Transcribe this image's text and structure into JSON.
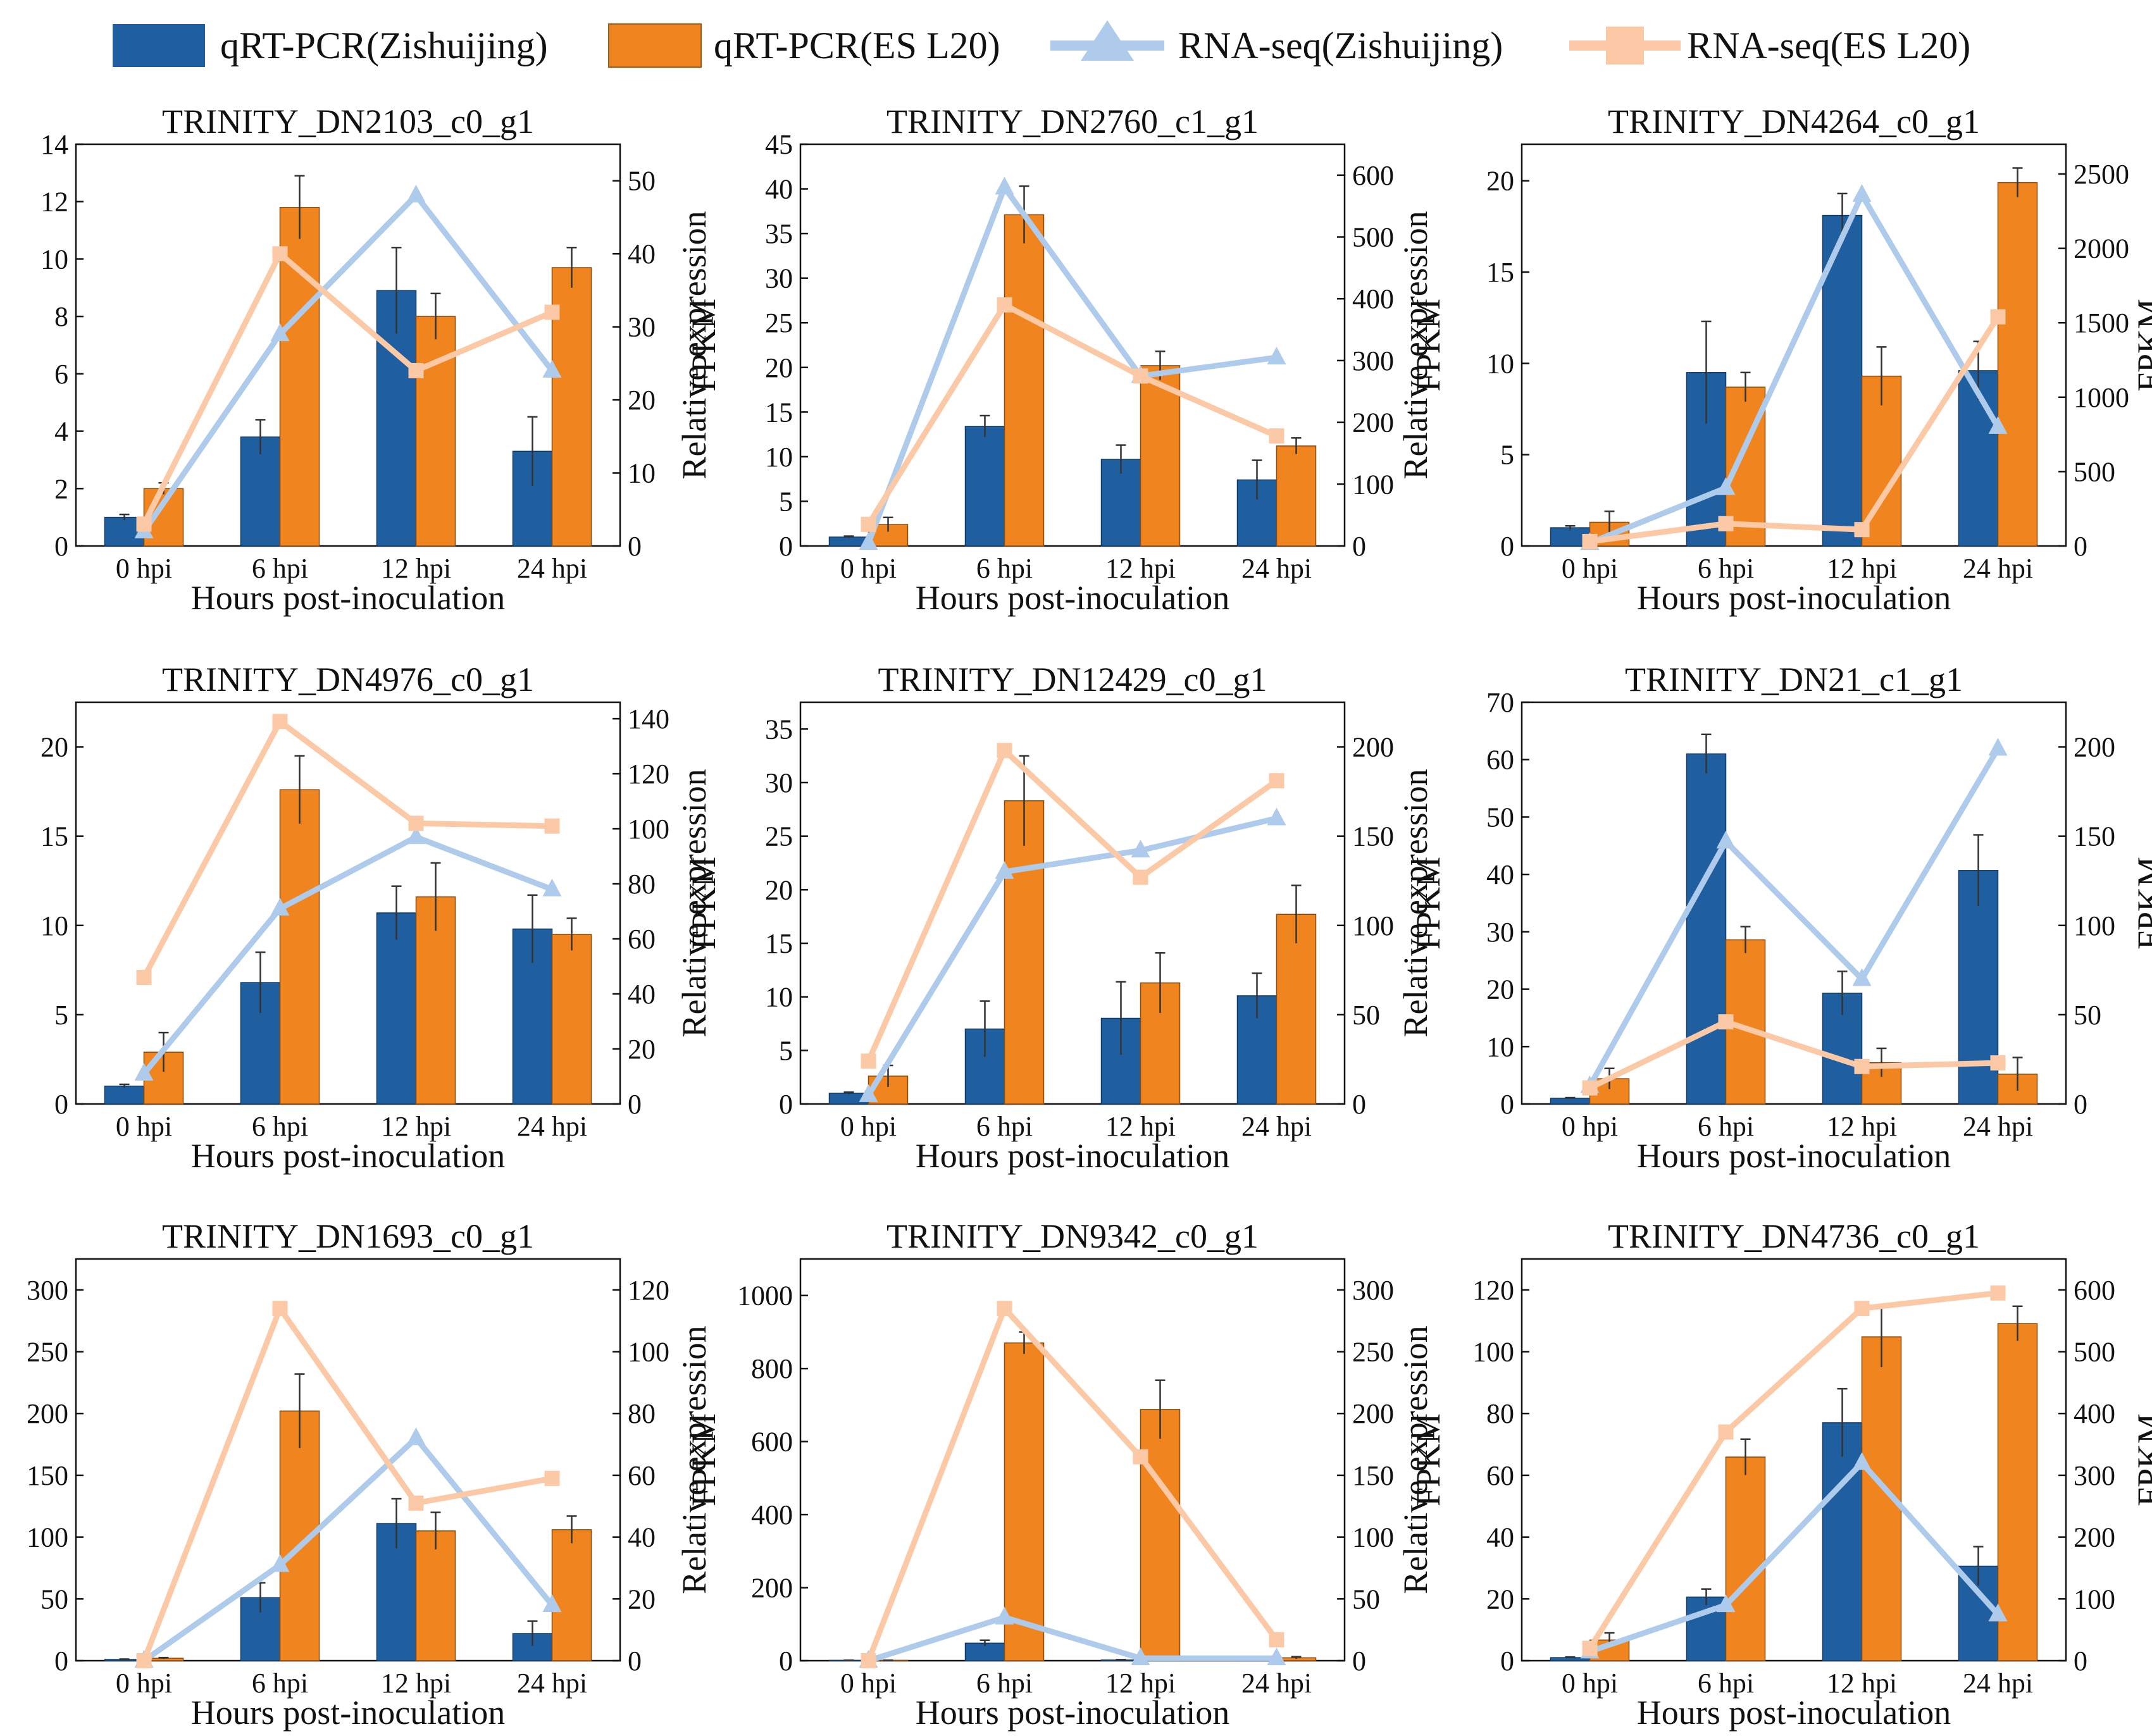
{
  "legend": {
    "items": [
      {
        "label": "qRT-PCR(Zishuijing)",
        "kind": "bar",
        "color": "#1f5fa0"
      },
      {
        "label": "qRT-PCR(ES L20)",
        "kind": "bar",
        "color": "#f0841e"
      },
      {
        "label": "RNA-seq(Zishuijing)",
        "kind": "line-triangle",
        "color": "#aecbeb"
      },
      {
        "label": "RNA-seq(ES L20)",
        "kind": "line-square",
        "color": "#fbc9a6"
      }
    ]
  },
  "colors": {
    "bar_zishuijing": "#1f5fa0",
    "bar_esl20": "#f0841e",
    "line_zishuijing": "#aecbeb",
    "line_esl20": "#fbc9a6"
  },
  "chart_data": [
    {
      "type": "bar",
      "title": "TRINITY_DN2103_c0_g1",
      "xlabel": "Hours post-inoculation",
      "ylabel": "Relative expression",
      "y2label": "FPKM",
      "categories": [
        "0 hpi",
        "6 hpi",
        "12 hpi",
        "24 hpi"
      ],
      "ylim": [
        0,
        14
      ],
      "yticks": [
        0,
        2,
        4,
        6,
        8,
        10,
        12,
        14
      ],
      "y2lim": [
        0,
        55
      ],
      "y2ticks": [
        0,
        10,
        20,
        30,
        40,
        50
      ],
      "series": [
        {
          "name": "qRT-PCR(Zishuijing)",
          "kind": "bar",
          "axis": "left",
          "values": [
            1.0,
            3.8,
            8.9,
            3.3
          ],
          "errors": [
            0.1,
            0.6,
            1.5,
            1.2
          ]
        },
        {
          "name": "qRT-PCR(ES L20)",
          "kind": "bar",
          "axis": "left",
          "values": [
            2.0,
            11.8,
            8.0,
            9.7
          ],
          "errors": [
            0.2,
            1.1,
            0.8,
            0.7
          ]
        },
        {
          "name": "RNA-seq(Zishuijing)",
          "kind": "line",
          "axis": "right",
          "values": [
            2,
            29,
            48,
            24
          ]
        },
        {
          "name": "RNA-seq(ES L20)",
          "kind": "line",
          "axis": "right",
          "values": [
            3,
            40,
            24,
            32
          ]
        }
      ]
    },
    {
      "type": "bar",
      "title": "TRINITY_DN2760_c1_g1",
      "xlabel": "Hours post-inoculation",
      "ylabel": "Relative expression",
      "y2label": "FPKM",
      "categories": [
        "0 hpi",
        "6 hpi",
        "12 hpi",
        "24 hpi"
      ],
      "ylim": [
        0,
        45
      ],
      "yticks": [
        0,
        5,
        10,
        15,
        20,
        25,
        30,
        35,
        40,
        45
      ],
      "y2lim": [
        0,
        650
      ],
      "y2ticks": [
        0,
        100,
        200,
        300,
        400,
        500,
        600
      ],
      "series": [
        {
          "name": "qRT-PCR(Zishuijing)",
          "kind": "bar",
          "axis": "left",
          "values": [
            1.0,
            13.4,
            9.7,
            7.4
          ],
          "errors": [
            0.1,
            1.2,
            1.6,
            2.2
          ]
        },
        {
          "name": "qRT-PCR(ES L20)",
          "kind": "bar",
          "axis": "left",
          "values": [
            2.4,
            37.1,
            20.2,
            11.2
          ],
          "errors": [
            0.8,
            3.2,
            1.6,
            0.9
          ]
        },
        {
          "name": "RNA-seq(Zishuijing)",
          "kind": "line",
          "axis": "right",
          "values": [
            5,
            580,
            275,
            305
          ]
        },
        {
          "name": "RNA-seq(ES L20)",
          "kind": "line",
          "axis": "right",
          "values": [
            35,
            390,
            275,
            178
          ]
        }
      ]
    },
    {
      "type": "bar",
      "title": "TRINITY_DN4264_c0_g1",
      "xlabel": "Hours post-inoculation",
      "ylabel": "Relative expression",
      "y2label": "FPKM",
      "categories": [
        "0 hpi",
        "6 hpi",
        "12 hpi",
        "24 hpi"
      ],
      "ylim": [
        0,
        22
      ],
      "yticks": [
        0,
        5,
        10,
        15,
        20
      ],
      "y2lim": [
        0,
        2700
      ],
      "y2ticks": [
        0,
        500,
        1000,
        1500,
        2000,
        2500
      ],
      "series": [
        {
          "name": "qRT-PCR(Zishuijing)",
          "kind": "bar",
          "axis": "left",
          "values": [
            1.0,
            9.5,
            18.1,
            9.6
          ],
          "errors": [
            0.1,
            2.8,
            1.2,
            1.6
          ]
        },
        {
          "name": "qRT-PCR(ES L20)",
          "kind": "bar",
          "axis": "left",
          "values": [
            1.3,
            8.7,
            9.3,
            19.9
          ],
          "errors": [
            0.6,
            0.8,
            1.6,
            0.8
          ]
        },
        {
          "name": "RNA-seq(Zishuijing)",
          "kind": "line",
          "axis": "right",
          "values": [
            20,
            390,
            2360,
            800
          ]
        },
        {
          "name": "RNA-seq(ES L20)",
          "kind": "line",
          "axis": "right",
          "values": [
            30,
            150,
            110,
            1540
          ]
        }
      ]
    },
    {
      "type": "bar",
      "title": "TRINITY_DN4976_c0_g1",
      "xlabel": "Hours post-inoculation",
      "ylabel": "Relative expression",
      "y2label": "FPKM",
      "categories": [
        "0 hpi",
        "6 hpi",
        "12 hpi",
        "24 hpi"
      ],
      "ylim": [
        0,
        22.5
      ],
      "yticks": [
        0,
        5,
        10,
        15,
        20
      ],
      "y2lim": [
        0,
        146
      ],
      "y2ticks": [
        0,
        20,
        40,
        60,
        80,
        100,
        120,
        140
      ],
      "series": [
        {
          "name": "qRT-PCR(Zishuijing)",
          "kind": "bar",
          "axis": "left",
          "values": [
            1.0,
            6.8,
            10.7,
            9.8
          ],
          "errors": [
            0.1,
            1.7,
            1.5,
            1.9
          ]
        },
        {
          "name": "qRT-PCR(ES L20)",
          "kind": "bar",
          "axis": "left",
          "values": [
            2.9,
            17.6,
            11.6,
            9.5
          ],
          "errors": [
            1.1,
            1.9,
            1.9,
            0.9
          ]
        },
        {
          "name": "RNA-seq(Zishuijing)",
          "kind": "line",
          "axis": "right",
          "values": [
            11,
            71,
            97,
            78
          ]
        },
        {
          "name": "RNA-seq(ES L20)",
          "kind": "line",
          "axis": "right",
          "values": [
            46,
            139,
            102,
            101
          ]
        }
      ]
    },
    {
      "type": "bar",
      "title": "TRINITY_DN12429_c0_g1",
      "xlabel": "Hours post-inoculation",
      "ylabel": "Relative expression",
      "y2label": "FPKM",
      "categories": [
        "0 hpi",
        "6 hpi",
        "12 hpi",
        "24 hpi"
      ],
      "ylim": [
        0,
        37.5
      ],
      "yticks": [
        0,
        5,
        10,
        15,
        20,
        25,
        30,
        35
      ],
      "y2lim": [
        0,
        225
      ],
      "y2ticks": [
        0,
        50,
        100,
        150,
        200
      ],
      "series": [
        {
          "name": "qRT-PCR(Zishuijing)",
          "kind": "bar",
          "axis": "left",
          "values": [
            1.0,
            7.0,
            8.0,
            10.1
          ],
          "errors": [
            0.1,
            2.6,
            3.4,
            2.1
          ]
        },
        {
          "name": "qRT-PCR(ES L20)",
          "kind": "bar",
          "axis": "left",
          "values": [
            2.6,
            28.3,
            11.3,
            17.7
          ],
          "errors": [
            1.0,
            4.2,
            2.8,
            2.7
          ]
        },
        {
          "name": "RNA-seq(Zishuijing)",
          "kind": "line",
          "axis": "right",
          "values": [
            5,
            130,
            142,
            160
          ]
        },
        {
          "name": "RNA-seq(ES L20)",
          "kind": "line",
          "axis": "right",
          "values": [
            24,
            198,
            127,
            181
          ]
        }
      ]
    },
    {
      "type": "bar",
      "title": "TRINITY_DN21_c1_g1",
      "xlabel": "Hours post-inoculation",
      "ylabel": "Relative expression",
      "y2label": "FPKM",
      "categories": [
        "0 hpi",
        "6 hpi",
        "12 hpi",
        "24 hpi"
      ],
      "ylim": [
        0,
        70
      ],
      "yticks": [
        0,
        10,
        20,
        30,
        40,
        50,
        60,
        70
      ],
      "y2lim": [
        0,
        225
      ],
      "y2ticks": [
        0,
        50,
        100,
        150,
        200
      ],
      "series": [
        {
          "name": "qRT-PCR(Zishuijing)",
          "kind": "bar",
          "axis": "left",
          "values": [
            1.0,
            61.0,
            19.3,
            40.7
          ],
          "errors": [
            0.1,
            3.4,
            3.8,
            6.2
          ]
        },
        {
          "name": "qRT-PCR(ES L20)",
          "kind": "bar",
          "axis": "left",
          "values": [
            4.4,
            28.6,
            7.2,
            5.2
          ],
          "errors": [
            1.8,
            2.3,
            2.5,
            2.9
          ]
        },
        {
          "name": "RNA-seq(Zishuijing)",
          "kind": "line",
          "axis": "right",
          "values": [
            10,
            147,
            70,
            199
          ]
        },
        {
          "name": "RNA-seq(ES L20)",
          "kind": "line",
          "axis": "right",
          "values": [
            9,
            46,
            21,
            23
          ]
        }
      ]
    },
    {
      "type": "bar",
      "title": "TRINITY_DN1693_c0_g1",
      "xlabel": "Hours post-inoculation",
      "ylabel": "Relative expression",
      "y2label": "FPKM",
      "categories": [
        "0 hpi",
        "6 hpi",
        "12 hpi",
        "24 hpi"
      ],
      "ylim": [
        0,
        325
      ],
      "yticks": [
        0,
        50,
        100,
        150,
        200,
        250,
        300
      ],
      "y2lim": [
        0,
        130
      ],
      "y2ticks": [
        0,
        20,
        40,
        60,
        80,
        100,
        120
      ],
      "series": [
        {
          "name": "qRT-PCR(Zishuijing)",
          "kind": "bar",
          "axis": "left",
          "values": [
            1,
            51,
            111,
            22
          ],
          "errors": [
            0.3,
            12,
            20,
            10
          ]
        },
        {
          "name": "qRT-PCR(ES L20)",
          "kind": "bar",
          "axis": "left",
          "values": [
            2,
            202,
            105,
            106
          ],
          "errors": [
            0.5,
            30,
            15,
            11
          ]
        },
        {
          "name": "RNA-seq(Zishuijing)",
          "kind": "line",
          "axis": "right",
          "values": [
            0,
            31,
            72,
            18
          ]
        },
        {
          "name": "RNA-seq(ES L20)",
          "kind": "line",
          "axis": "right",
          "values": [
            0,
            114,
            51,
            59
          ]
        }
      ]
    },
    {
      "type": "bar",
      "title": "TRINITY_DN9342_c0_g1",
      "xlabel": "Hours post-inoculation",
      "ylabel": "Relative expression",
      "y2label": "FPKM",
      "categories": [
        "0 hpi",
        "6 hpi",
        "12 hpi",
        "24 hpi"
      ],
      "ylim": [
        0,
        1100
      ],
      "yticks": [
        0,
        200,
        400,
        600,
        800,
        1000
      ],
      "y2lim": [
        0,
        325
      ],
      "y2ticks": [
        0,
        50,
        100,
        150,
        200,
        250,
        300
      ],
      "series": [
        {
          "name": "qRT-PCR(Zishuijing)",
          "kind": "bar",
          "axis": "left",
          "values": [
            1,
            48,
            2,
            2
          ],
          "errors": [
            0.3,
            8,
            1,
            1
          ]
        },
        {
          "name": "qRT-PCR(ES L20)",
          "kind": "bar",
          "axis": "left",
          "values": [
            1,
            870,
            688,
            8
          ],
          "errors": [
            0.3,
            30,
            80,
            3
          ]
        },
        {
          "name": "RNA-seq(Zishuijing)",
          "kind": "line",
          "axis": "right",
          "values": [
            0,
            35,
            2,
            2
          ]
        },
        {
          "name": "RNA-seq(ES L20)",
          "kind": "line",
          "axis": "right",
          "values": [
            0,
            285,
            165,
            17
          ]
        }
      ]
    },
    {
      "type": "bar",
      "title": "TRINITY_DN4736_c0_g1",
      "xlabel": "Hours post-inoculation",
      "ylabel": "Relative expression",
      "y2label": "FPKM",
      "categories": [
        "0 hpi",
        "6 hpi",
        "12 hpi",
        "24 hpi"
      ],
      "ylim": [
        0,
        130
      ],
      "yticks": [
        0,
        20,
        40,
        60,
        80,
        100,
        120
      ],
      "y2lim": [
        0,
        650
      ],
      "y2ticks": [
        0,
        100,
        200,
        300,
        400,
        500,
        600
      ],
      "series": [
        {
          "name": "qRT-PCR(Zishuijing)",
          "kind": "bar",
          "axis": "left",
          "values": [
            1,
            20.6,
            77.0,
            30.6
          ],
          "errors": [
            0.2,
            2.6,
            11.0,
            6.3
          ]
        },
        {
          "name": "qRT-PCR(ES L20)",
          "kind": "bar",
          "axis": "left",
          "values": [
            6.7,
            65.9,
            104.8,
            109.1
          ],
          "errors": [
            2.3,
            5.8,
            9.8,
            5.6
          ]
        },
        {
          "name": "RNA-seq(Zishuijing)",
          "kind": "line",
          "axis": "right",
          "values": [
            15,
            90,
            320,
            75
          ]
        },
        {
          "name": "RNA-seq(ES L20)",
          "kind": "line",
          "axis": "right",
          "values": [
            20,
            370,
            570,
            595
          ]
        }
      ]
    }
  ]
}
